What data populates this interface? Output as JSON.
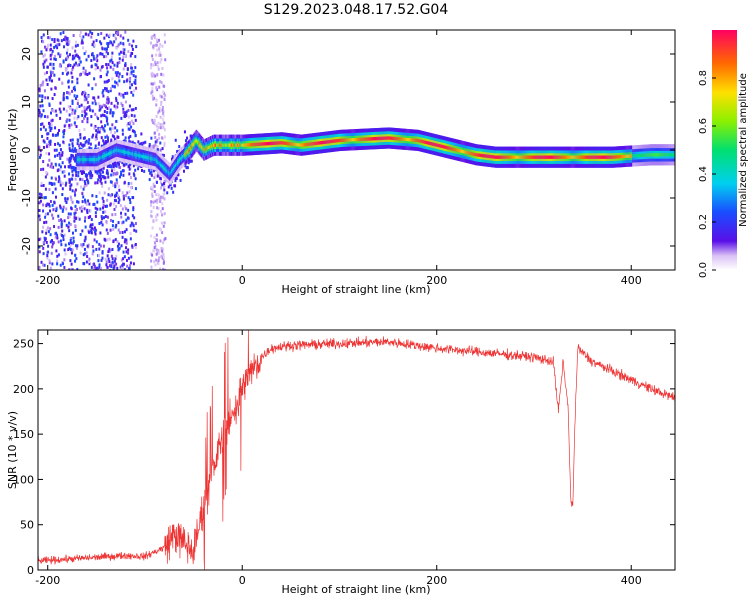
{
  "title": "S129.2023.048.17.52.G04",
  "chart_data": [
    {
      "type": "heatmap",
      "xlabel": "Height of straight line (km)",
      "ylabel": "Frequency (Hz)",
      "xlim": [
        -210,
        445
      ],
      "ylim": [
        -25,
        25
      ],
      "xticks": [
        -200,
        0,
        200,
        400
      ],
      "yticks": [
        -20,
        -10,
        0,
        10,
        20
      ],
      "colorbar": {
        "label": "Normalized spectral amplitude",
        "range": [
          0,
          1
        ],
        "ticks": [
          "0.0",
          "0.2",
          "0.4",
          "0.6",
          "0.8"
        ]
      },
      "ridge": {
        "x": [
          -150,
          -130,
          -110,
          -90,
          -75,
          -65,
          -55,
          -48,
          -40,
          -30,
          0,
          40,
          60,
          100,
          150,
          180,
          200,
          220,
          240,
          260,
          300,
          340,
          380,
          420,
          445
        ],
        "y": [
          -2,
          0,
          -1,
          -2,
          -5,
          -2,
          0,
          2,
          0,
          1,
          1,
          1.5,
          1,
          2,
          2.5,
          2,
          1,
          0,
          -1,
          -1.5,
          -1.5,
          -1.5,
          -1.5,
          -1,
          -1
        ]
      }
    },
    {
      "type": "line",
      "xlabel": "Height of straight line (km)",
      "ylabel": "SNR (10 * v/v)",
      "xlim": [
        -210,
        445
      ],
      "ylim": [
        0,
        265
      ],
      "xticks": [
        -200,
        0,
        200,
        400
      ],
      "yticks": [
        0,
        50,
        100,
        150,
        200,
        250
      ],
      "color": "#ee3333",
      "series": [
        {
          "x": [
            -210,
            -180,
            -150,
            -120,
            -100,
            -80,
            -70,
            -50,
            -40,
            -30,
            -20,
            -10,
            0,
            10,
            20,
            30,
            50,
            100,
            150,
            200,
            250,
            300,
            320,
            325,
            330,
            335,
            338,
            340,
            342,
            345,
            350,
            360,
            380,
            400,
            420,
            445
          ],
          "y": [
            10,
            12,
            14,
            16,
            15,
            25,
            40,
            20,
            70,
            110,
            150,
            170,
            200,
            220,
            235,
            245,
            248,
            250,
            252,
            245,
            240,
            235,
            230,
            175,
            230,
            180,
            75,
            70,
            160,
            245,
            240,
            230,
            220,
            210,
            200,
            190
          ]
        }
      ]
    }
  ]
}
